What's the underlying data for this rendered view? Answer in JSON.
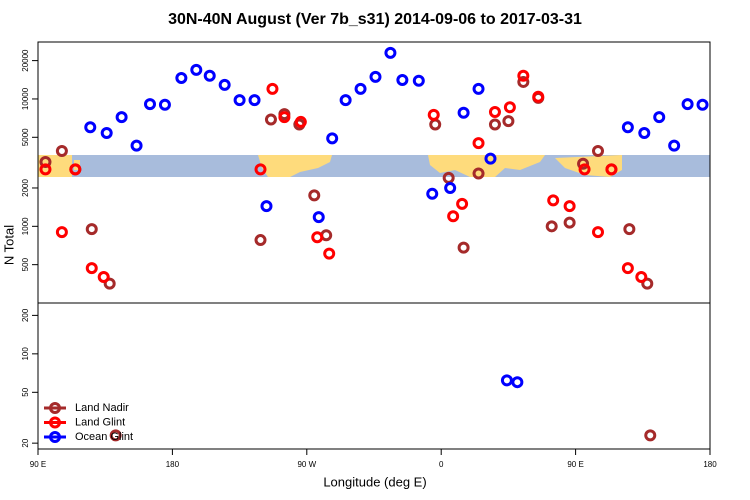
{
  "chart_data": [
    {
      "type": "scatter",
      "title": "30N-40N August (Ver 7b_s31)   2014-09-06 to 2017-03-31",
      "y_label": "N Total",
      "log_y": true,
      "ylim": [
        250,
        28000
      ],
      "yticks": [
        500,
        1000,
        2000,
        5000,
        10000,
        20000
      ],
      "series": [
        {
          "color": "#a52a2a",
          "x": [
            95,
            106,
            115,
            126,
            138,
            239,
            246,
            255,
            265,
            275,
            283,
            356,
            365,
            375,
            385,
            396,
            405,
            415,
            425,
            434,
            446,
            455,
            465,
            474,
            486,
            498
          ],
          "values": [
            3200,
            3900,
            2800,
            950,
            355,
            780,
            6900,
            7600,
            6300,
            1750,
            850,
            6300,
            2400,
            680,
            2600,
            6300,
            6700,
            13600,
            10200,
            1000,
            1070,
            3100,
            3900,
            2800,
            950,
            355
          ]
        },
        {
          "color": "#ff0000",
          "x": [
            95,
            106,
            115,
            126,
            134,
            239,
            247,
            255,
            266,
            277,
            285,
            355,
            368,
            374,
            385,
            396,
            406,
            415,
            425,
            435,
            446,
            456,
            465,
            474,
            485,
            494
          ],
          "values": [
            2800,
            900,
            2800,
            470,
            400,
            2800,
            12000,
            7200,
            6600,
            820,
            610,
            7500,
            1200,
            1500,
            4500,
            7900,
            8600,
            15200,
            10400,
            1600,
            1440,
            2800,
            900,
            2800,
            470,
            400
          ]
        },
        {
          "color": "#0000ff",
          "x": [
            125,
            136,
            146,
            156,
            165,
            175,
            186,
            196,
            205,
            215,
            225,
            235,
            243,
            278,
            287,
            296,
            306,
            316,
            326,
            334,
            345,
            354,
            366,
            375,
            385,
            393,
            485,
            496,
            506,
            516,
            525,
            535
          ],
          "values": [
            6000,
            5400,
            7200,
            4300,
            9100,
            9000,
            14600,
            16900,
            15200,
            12900,
            9800,
            9800,
            1440,
            1180,
            4900,
            9800,
            12000,
            14900,
            23000,
            14100,
            13900,
            1800,
            2000,
            7800,
            12000,
            3400,
            6000,
            5400,
            7200,
            4300,
            9100,
            9000
          ]
        }
      ]
    },
    {
      "type": "scatter",
      "x_label": "Longitude (deg E)",
      "log_y": true,
      "ylim": [
        18,
        250
      ],
      "yticks": [
        20,
        50,
        100,
        200
      ],
      "xlim": [
        90,
        540
      ],
      "xticks": [
        {
          "value": 90,
          "label": "90 E"
        },
        {
          "value": 180,
          "label": "180"
        },
        {
          "value": 270,
          "label": "90 W"
        },
        {
          "value": 360,
          "label": "0"
        },
        {
          "value": 450,
          "label": "90 E"
        },
        {
          "value": 540,
          "label": "180"
        }
      ],
      "legend": "bottom-left",
      "series": [
        {
          "name": "Land Nadir",
          "color": "#a52a2a",
          "x": [
            142,
            500
          ],
          "values": [
            23,
            23
          ]
        },
        {
          "name": "Land Glint",
          "color": "#ff0000",
          "x": [],
          "values": []
        },
        {
          "name": "Ocean Glint",
          "color": "#0000ff",
          "x": [
            404,
            411
          ],
          "values": [
            62,
            60
          ]
        }
      ]
    }
  ]
}
